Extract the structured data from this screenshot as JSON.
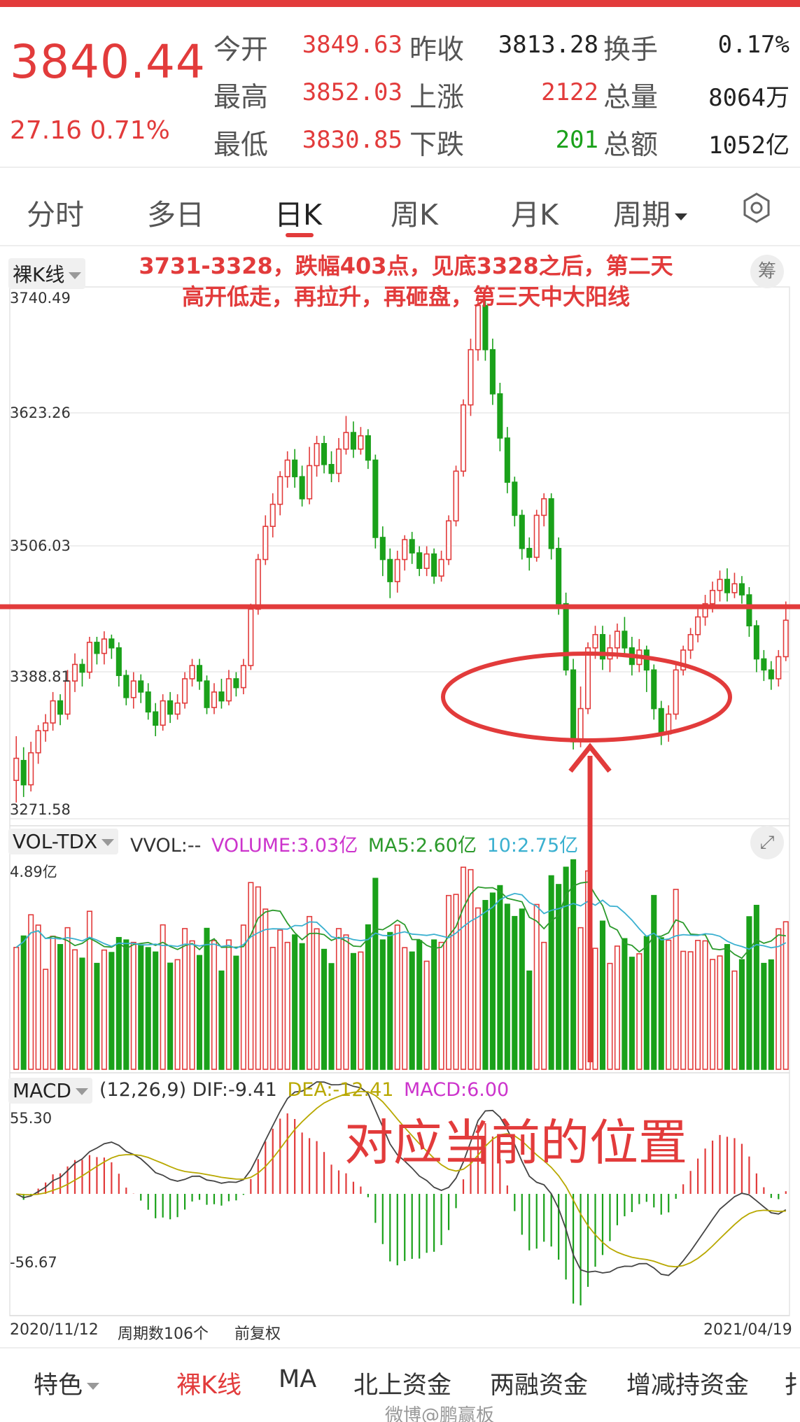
{
  "quote": {
    "price": "3840.44",
    "change": "27.16  0.71%",
    "rows": [
      [
        {
          "label": "今开",
          "value": "3849.63",
          "color": "red"
        },
        {
          "label": "昨收",
          "value": "3813.28",
          "color": "dark"
        },
        {
          "label": "换手",
          "value": "0.17%",
          "color": "dark"
        }
      ],
      [
        {
          "label": "最高",
          "value": "3852.03",
          "color": "red"
        },
        {
          "label": "上涨",
          "value": "2122",
          "color": "red"
        },
        {
          "label": "总量",
          "value": "8064万",
          "color": "dark"
        }
      ],
      [
        {
          "label": "最低",
          "value": "3830.85",
          "color": "red"
        },
        {
          "label": "下跌",
          "value": "201",
          "color": "green"
        },
        {
          "label": "总额",
          "value": "1052亿",
          "color": "dark"
        }
      ]
    ]
  },
  "tabs": [
    "分时",
    "多日",
    "日K",
    "周K",
    "月K",
    "周期"
  ],
  "active_tab": "日K",
  "kline": {
    "selector": "裸K线",
    "chip_button": "筹",
    "y_labels": [
      "3740.49",
      "3623.26",
      "3506.03",
      "3388.81",
      "3271.58"
    ],
    "annotation_line1": "3731-3328，跌幅403点，见底3328之后，第二天",
    "annotation_line2": "高开低走，再拉升，再砸盘，第三天中大阳线"
  },
  "volume": {
    "selector": "VOL-TDX",
    "vvol": "VVOL:--",
    "volume": "VOLUME:3.03亿",
    "ma5": "MA5:2.60亿",
    "ma10": "10:2.75亿",
    "top_label": "4.89亿"
  },
  "macd": {
    "selector": "MACD",
    "params": "(12,26,9)",
    "dif": "DIF:-9.41",
    "dea": "DEA:-12.41",
    "macd": "MACD:6.00",
    "top_label": "55.30",
    "bottom_label": "-56.67",
    "annotation": "对应当前的位置"
  },
  "footer": {
    "start_date": "2020/11/12",
    "period_count": "周期数106个",
    "adjust": "前复权",
    "end_date": "2021/04/19"
  },
  "bottom_tabs": [
    "特色",
    "裸K线",
    "MA",
    "北上资金",
    "两融资金",
    "增减持资金",
    "扌"
  ],
  "watermark": "微博@鹏赢板",
  "colors": {
    "up": "#e23b3b",
    "down": "#1aa11a",
    "ma5": "#cc9900",
    "ma10": "#3ab0d0",
    "annotation": "#e23b3b"
  },
  "chart_data": {
    "type": "candlestick",
    "x_range": [
      "2020/11/12",
      "2021/04/19"
    ],
    "ylim": [
      3271.58,
      3740.49
    ],
    "candles": [
      [
        3300,
        3320,
        3340,
        3280
      ],
      [
        3318,
        3296,
        3330,
        3285
      ],
      [
        3296,
        3325,
        3335,
        3290
      ],
      [
        3325,
        3345,
        3350,
        3315
      ],
      [
        3345,
        3352,
        3360,
        3335
      ],
      [
        3352,
        3372,
        3380,
        3345
      ],
      [
        3372,
        3360,
        3378,
        3350
      ],
      [
        3360,
        3390,
        3400,
        3355
      ],
      [
        3390,
        3405,
        3415,
        3380
      ],
      [
        3405,
        3398,
        3410,
        3385
      ],
      [
        3398,
        3425,
        3430,
        3392
      ],
      [
        3425,
        3415,
        3430,
        3405
      ],
      [
        3415,
        3428,
        3435,
        3405
      ],
      [
        3428,
        3420,
        3432,
        3410
      ],
      [
        3420,
        3395,
        3425,
        3385
      ],
      [
        3395,
        3375,
        3400,
        3368
      ],
      [
        3375,
        3390,
        3398,
        3365
      ],
      [
        3390,
        3380,
        3396,
        3370
      ],
      [
        3380,
        3362,
        3388,
        3355
      ],
      [
        3362,
        3350,
        3370,
        3340
      ],
      [
        3350,
        3372,
        3378,
        3345
      ],
      [
        3372,
        3360,
        3380,
        3352
      ],
      [
        3360,
        3370,
        3378,
        3355
      ],
      [
        3370,
        3392,
        3398,
        3365
      ],
      [
        3392,
        3404,
        3410,
        3385
      ],
      [
        3404,
        3390,
        3410,
        3382
      ],
      [
        3390,
        3366,
        3395,
        3360
      ],
      [
        3366,
        3380,
        3388,
        3360
      ],
      [
        3380,
        3372,
        3392,
        3365
      ],
      [
        3372,
        3392,
        3400,
        3368
      ],
      [
        3392,
        3384,
        3398,
        3376
      ],
      [
        3384,
        3404,
        3410,
        3378
      ],
      [
        3404,
        3455,
        3460,
        3400
      ],
      [
        3455,
        3500,
        3505,
        3450
      ],
      [
        3500,
        3530,
        3540,
        3495
      ],
      [
        3530,
        3550,
        3560,
        3520
      ],
      [
        3550,
        3575,
        3580,
        3540
      ],
      [
        3575,
        3590,
        3598,
        3565
      ],
      [
        3590,
        3575,
        3600,
        3565
      ],
      [
        3575,
        3555,
        3585,
        3548
      ],
      [
        3555,
        3585,
        3602,
        3550
      ],
      [
        3585,
        3605,
        3612,
        3575
      ],
      [
        3605,
        3586,
        3612,
        3578
      ],
      [
        3586,
        3578,
        3598,
        3570
      ],
      [
        3578,
        3600,
        3610,
        3570
      ],
      [
        3600,
        3615,
        3630,
        3595
      ],
      [
        3615,
        3600,
        3625,
        3592
      ],
      [
        3600,
        3612,
        3620,
        3595
      ],
      [
        3612,
        3590,
        3618,
        3582
      ],
      [
        3590,
        3520,
        3595,
        3510
      ],
      [
        3520,
        3500,
        3530,
        3485
      ],
      [
        3500,
        3480,
        3510,
        3465
      ],
      [
        3480,
        3500,
        3508,
        3470
      ],
      [
        3500,
        3518,
        3522,
        3490
      ],
      [
        3518,
        3506,
        3525,
        3496
      ],
      [
        3506,
        3492,
        3512,
        3485
      ],
      [
        3492,
        3505,
        3512,
        3485
      ],
      [
        3505,
        3485,
        3510,
        3478
      ],
      [
        3485,
        3500,
        3508,
        3480
      ],
      [
        3500,
        3535,
        3540,
        3495
      ],
      [
        3535,
        3580,
        3585,
        3530
      ],
      [
        3580,
        3640,
        3645,
        3575
      ],
      [
        3640,
        3690,
        3700,
        3630
      ],
      [
        3690,
        3730,
        3740,
        3680
      ],
      [
        3730,
        3690,
        3735,
        3680
      ],
      [
        3690,
        3650,
        3700,
        3640
      ],
      [
        3650,
        3610,
        3660,
        3598
      ],
      [
        3610,
        3570,
        3620,
        3560
      ],
      [
        3570,
        3540,
        3575,
        3530
      ],
      [
        3540,
        3510,
        3545,
        3500
      ],
      [
        3510,
        3502,
        3520,
        3490
      ],
      [
        3502,
        3540,
        3545,
        3498
      ],
      [
        3540,
        3555,
        3560,
        3530
      ],
      [
        3555,
        3510,
        3560,
        3500
      ],
      [
        3510,
        3460,
        3520,
        3450
      ],
      [
        3460,
        3400,
        3470,
        3395
      ],
      [
        3400,
        3335,
        3410,
        3328
      ],
      [
        3335,
        3365,
        3385,
        3330
      ],
      [
        3365,
        3420,
        3425,
        3360
      ],
      [
        3420,
        3432,
        3440,
        3410
      ],
      [
        3432,
        3410,
        3440,
        3400
      ],
      [
        3410,
        3420,
        3432,
        3398
      ],
      [
        3420,
        3435,
        3442,
        3410
      ],
      [
        3435,
        3420,
        3448,
        3412
      ],
      [
        3420,
        3405,
        3430,
        3395
      ],
      [
        3405,
        3418,
        3428,
        3398
      ],
      [
        3418,
        3400,
        3422,
        3380
      ],
      [
        3400,
        3365,
        3405,
        3355
      ],
      [
        3365,
        3342,
        3372,
        3332
      ],
      [
        3342,
        3360,
        3368,
        3335
      ],
      [
        3360,
        3400,
        3405,
        3355
      ],
      [
        3400,
        3418,
        3422,
        3395
      ],
      [
        3418,
        3432,
        3438,
        3410
      ],
      [
        3432,
        3448,
        3455,
        3425
      ],
      [
        3448,
        3460,
        3468,
        3440
      ],
      [
        3460,
        3472,
        3480,
        3452
      ],
      [
        3472,
        3482,
        3490,
        3462
      ],
      [
        3482,
        3470,
        3492,
        3462
      ],
      [
        3470,
        3478,
        3488,
        3465
      ],
      [
        3478,
        3468,
        3485,
        3460
      ],
      [
        3468,
        3440,
        3475,
        3430
      ],
      [
        3440,
        3410,
        3445,
        3398
      ],
      [
        3410,
        3400,
        3418,
        3390
      ],
      [
        3400,
        3392,
        3408,
        3382
      ],
      [
        3392,
        3412,
        3418,
        3385
      ],
      [
        3412,
        3445,
        3462,
        3408
      ]
    ]
  }
}
